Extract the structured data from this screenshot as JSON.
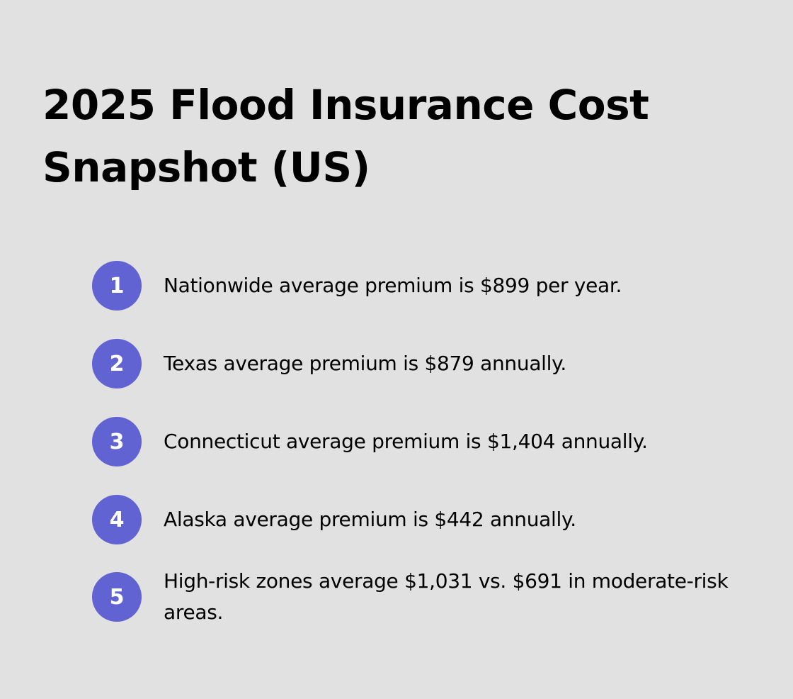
{
  "title_line1": "2025 Flood Insurance Cost",
  "title_line2": "Snapshot (US)",
  "colors": {
    "background": "#e0e1e0",
    "badge": "#6163d3",
    "text": "#000000"
  },
  "items": [
    {
      "number": "1",
      "text": "Nationwide average premium is $899 per year."
    },
    {
      "number": "2",
      "text": "Texas average premium is $879 annually."
    },
    {
      "number": "3",
      "text": "Connecticut average premium is $1,404 annually."
    },
    {
      "number": "4",
      "text": "Alaska average premium is $442 annually."
    },
    {
      "number": "5",
      "text": "High-risk zones average $1,031 vs. $691 in moderate-risk areas."
    }
  ]
}
